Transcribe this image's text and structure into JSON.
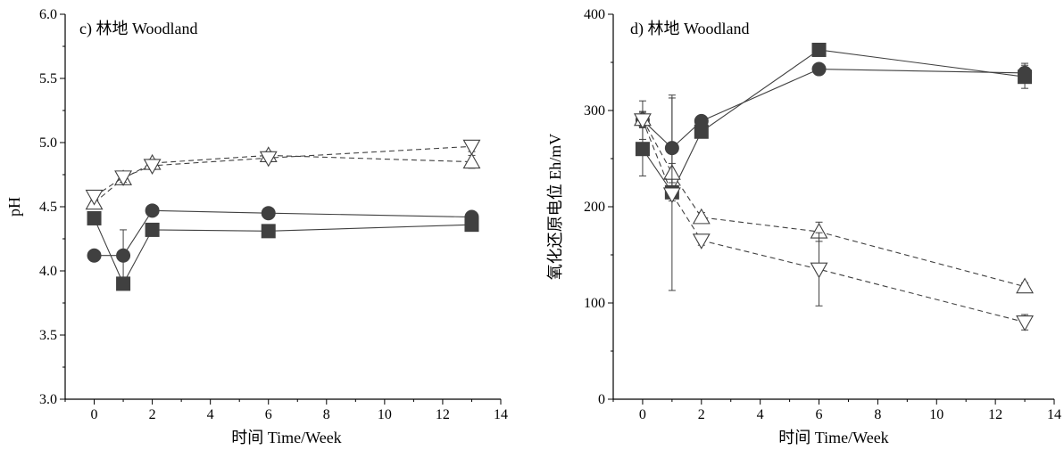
{
  "chart_data": [
    {
      "type": "line",
      "title": "c) 林地 Woodland",
      "xlabel": "时间 Time/Week",
      "ylabel": "pH",
      "xlim": [
        -1,
        14
      ],
      "ylim": [
        3.0,
        6.0
      ],
      "xticks": [
        0,
        2,
        4,
        6,
        8,
        10,
        12,
        14
      ],
      "yticks": [
        3.0,
        3.5,
        4.0,
        4.5,
        5.0,
        5.5,
        6.0
      ],
      "xtick_labels": [
        "0",
        "2",
        "4",
        "6",
        "8",
        "10",
        "12",
        "14"
      ],
      "ytick_labels": [
        "3.0",
        "3.5",
        "4.0",
        "4.5",
        "5.0",
        "5.5",
        "6.0"
      ],
      "grid": false,
      "series": [
        {
          "marker": "square",
          "line": "solid",
          "color": "#404040",
          "x": [
            0,
            1,
            2,
            6,
            13
          ],
          "y": [
            4.41,
            3.9,
            4.32,
            4.31,
            4.36
          ],
          "err": [
            0.04,
            0.03,
            0.03,
            0.04,
            0.02
          ]
        },
        {
          "marker": "circle",
          "line": "solid",
          "color": "#404040",
          "x": [
            0,
            1,
            2,
            6,
            13
          ],
          "y": [
            4.12,
            4.12,
            4.47,
            4.45,
            4.42
          ],
          "err": [
            0.02,
            0.2,
            0.02,
            0.02,
            0.02
          ]
        },
        {
          "marker": "triangle-up",
          "line": "dashed",
          "color": "#404040",
          "x": [
            0,
            1,
            2,
            6,
            13
          ],
          "y": [
            4.53,
            4.72,
            4.84,
            4.9,
            4.85
          ],
          "err": [
            0.03,
            0.04,
            0.03,
            0.03,
            0.05
          ]
        },
        {
          "marker": "triangle-down",
          "line": "dashed",
          "color": "#404040",
          "x": [
            0,
            1,
            2,
            6,
            13
          ],
          "y": [
            4.58,
            4.73,
            4.82,
            4.88,
            4.97
          ],
          "err": [
            0.03,
            0.04,
            0.03,
            0.03,
            0.04
          ]
        }
      ]
    },
    {
      "type": "line",
      "title": "d) 林地 Woodland",
      "xlabel": "时间 Time/Week",
      "ylabel": "氧化还原电位 Eh/mV",
      "xlim": [
        -1,
        14
      ],
      "ylim": [
        0,
        400
      ],
      "xticks": [
        0,
        2,
        4,
        6,
        8,
        10,
        12,
        14
      ],
      "yticks": [
        0,
        100,
        200,
        300,
        400
      ],
      "xtick_labels": [
        "0",
        "2",
        "4",
        "6",
        "8",
        "10",
        "12",
        "14"
      ],
      "ytick_labels": [
        "0",
        "100",
        "200",
        "300",
        "400"
      ],
      "grid": false,
      "series": [
        {
          "marker": "square",
          "line": "solid",
          "color": "#404040",
          "x": [
            0,
            1,
            2,
            6,
            13
          ],
          "y": [
            260,
            215,
            278,
            363,
            335
          ],
          "err": [
            28,
            5,
            5,
            3,
            12
          ]
        },
        {
          "marker": "circle",
          "line": "solid",
          "color": "#404040",
          "x": [
            0,
            1,
            2,
            6,
            13
          ],
          "y": [
            290,
            261,
            289,
            343,
            339
          ],
          "err": [
            20,
            55,
            3,
            3,
            10
          ]
        },
        {
          "marker": "triangle-up",
          "line": "dashed",
          "color": "#404040",
          "x": [
            0,
            1,
            2,
            6,
            13
          ],
          "y": [
            291,
            235,
            189,
            174,
            117
          ],
          "err": [
            8,
            10,
            5,
            10,
            4
          ]
        },
        {
          "marker": "triangle-down",
          "line": "dashed",
          "color": "#404040",
          "x": [
            0,
            1,
            2,
            6,
            13
          ],
          "y": [
            290,
            213,
            165,
            135,
            80
          ],
          "err": [
            8,
            100,
            5,
            38,
            8
          ]
        }
      ]
    }
  ]
}
